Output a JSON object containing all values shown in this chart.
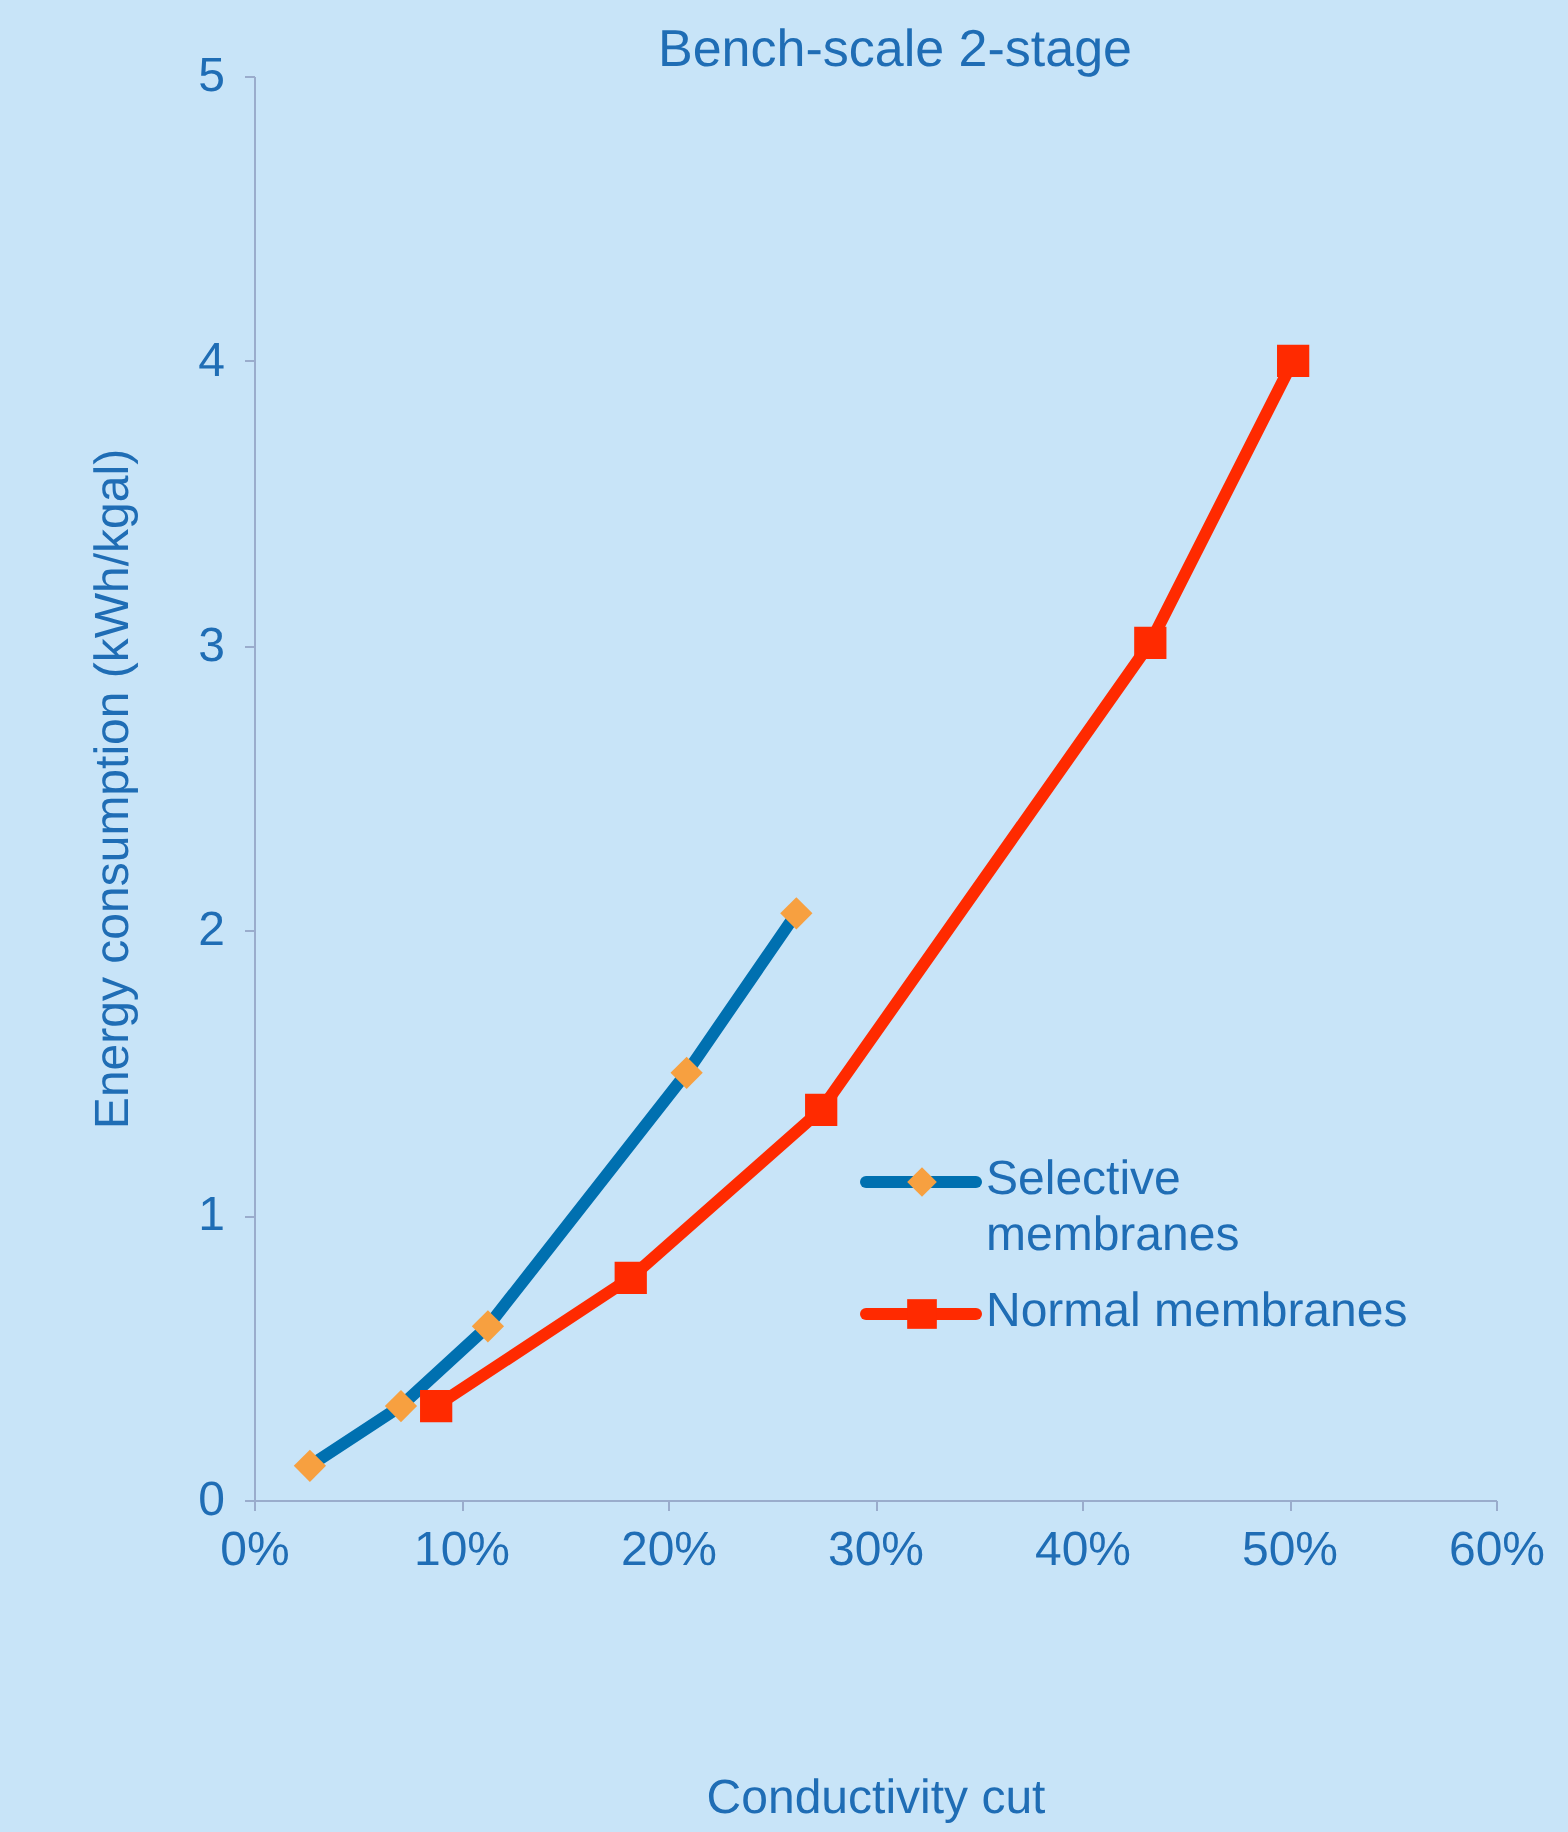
{
  "chart_data": {
    "type": "line",
    "title": "Bench-scale 2-stage",
    "xlabel": "Conductivity cut",
    "ylabel": "Energy consumption (kWh/kgal)",
    "xlim": [
      0,
      60
    ],
    "xticks": [
      {
        "value": 0,
        "label": "0%"
      },
      {
        "value": 10,
        "label": "10%"
      },
      {
        "value": 20,
        "label": "20%"
      },
      {
        "value": 30,
        "label": "30%"
      },
      {
        "value": 40,
        "label": "40%"
      },
      {
        "value": 50,
        "label": "50%"
      },
      {
        "value": 60,
        "label": "60%"
      }
    ],
    "ylim": [
      0,
      5
    ],
    "yticks": [
      0,
      1,
      2,
      3,
      4,
      5
    ],
    "grid": false,
    "legend": "right",
    "line_style": "solid",
    "series": [
      {
        "name": "Selective membranes",
        "color": "#0070b0",
        "colors": [
          "#f7a040",
          "#f7a040",
          "#f7a040",
          "#f7a040",
          "#f7a040"
        ],
        "marker": "diamond",
        "x": [
          2.7,
          7.1,
          11.3,
          20.9,
          26.2
        ],
        "values": [
          0.12,
          0.33,
          0.61,
          1.5,
          2.06
        ]
      },
      {
        "name": "Normal membranes",
        "color": "#ff2a00",
        "colors": [
          "#ff2a00",
          "#ff2a00",
          "#ff2a00",
          "#ff2a00",
          "#ff2a00"
        ],
        "marker": "square",
        "x": [
          8.8,
          18.2,
          27.4,
          43.3,
          50.2
        ],
        "values": [
          0.33,
          0.78,
          1.37,
          3.01,
          4.0
        ]
      }
    ]
  }
}
